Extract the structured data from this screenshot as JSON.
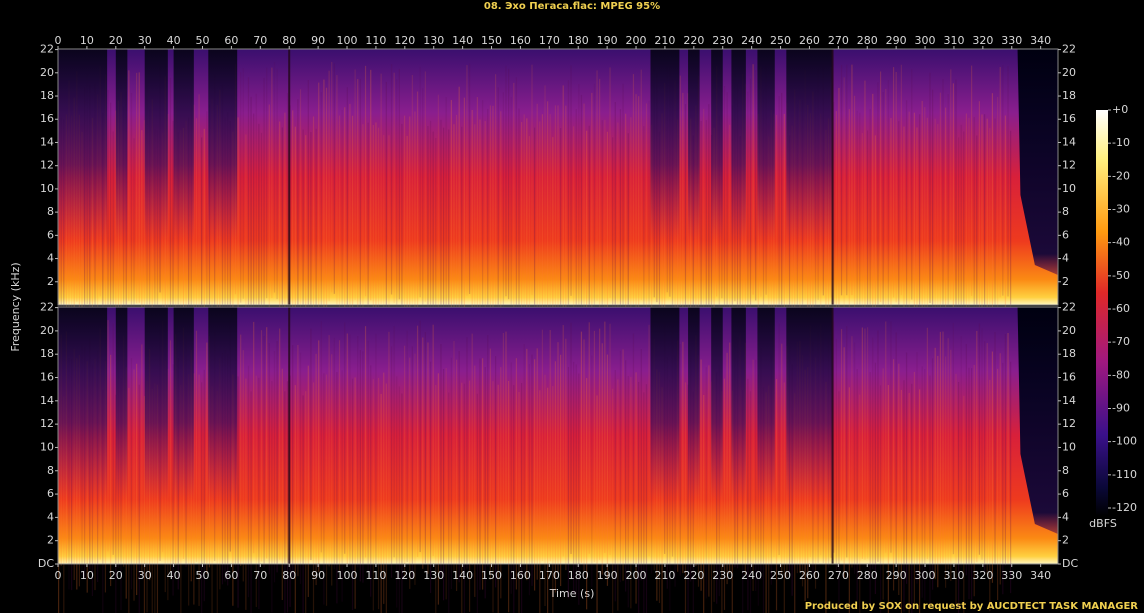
{
  "chart_data": {
    "type": "spectrogram",
    "title": "08. Эхо Пегаса.flac: MPEG 95%",
    "xlabel": "Time (s)",
    "ylabel": "Frequency (kHz)",
    "xlim": [
      0,
      346
    ],
    "xticks": [
      0,
      10,
      20,
      30,
      40,
      50,
      60,
      70,
      80,
      90,
      100,
      110,
      120,
      130,
      140,
      150,
      160,
      170,
      180,
      190,
      200,
      210,
      220,
      230,
      240,
      250,
      260,
      270,
      280,
      290,
      300,
      310,
      320,
      330,
      340
    ],
    "panels": [
      {
        "ylim": [
          0,
          22.05
        ],
        "yticks": [
          2,
          4,
          6,
          8,
          10,
          12,
          14,
          16,
          18,
          20,
          22
        ]
      },
      {
        "ylim": [
          0,
          22.05
        ],
        "yticks": [
          {
            "value": 0,
            "label": "DC"
          },
          2,
          4,
          6,
          8,
          10,
          12,
          14,
          16,
          18,
          20,
          22
        ]
      }
    ],
    "colorbar": {
      "label": "dBFS",
      "lim": [
        -120,
        0
      ],
      "ticks": [
        {
          "value": 0,
          "label": "+0"
        },
        -10,
        -20,
        -30,
        -40,
        -50,
        -60,
        -70,
        -80,
        -90,
        -100,
        -110,
        -120
      ]
    },
    "footer": "Produced by SOX on request by AUCDTECT TASK MANAGER"
  }
}
